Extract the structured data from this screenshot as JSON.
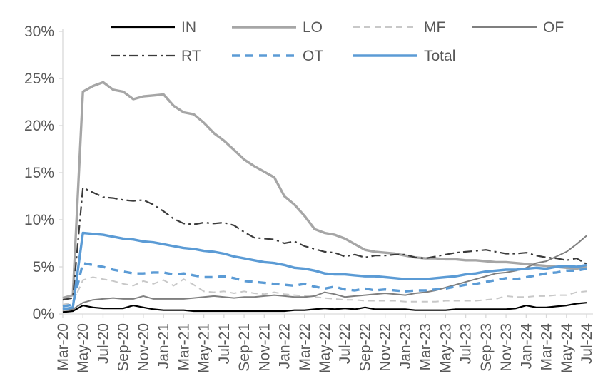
{
  "chart_data": {
    "type": "line",
    "grid": false,
    "legend_position": "top-two-rows",
    "ylim": [
      0,
      30
    ],
    "y_tick_labels": [
      "0%",
      "5%",
      "10%",
      "15%",
      "20%",
      "25%",
      "30%"
    ],
    "x_monthly": [
      "Mar-20",
      "Apr-20",
      "May-20",
      "Jun-20",
      "Jul-20",
      "Aug-20",
      "Sep-20",
      "Oct-20",
      "Nov-20",
      "Dec-20",
      "Jan-21",
      "Feb-21",
      "Mar-21",
      "Apr-21",
      "May-21",
      "Jun-21",
      "Jul-21",
      "Aug-21",
      "Sep-21",
      "Oct-21",
      "Nov-21",
      "Dec-21",
      "Jan-22",
      "Feb-22",
      "Mar-22",
      "Apr-22",
      "May-22",
      "Jun-22",
      "Jul-22",
      "Aug-22",
      "Sep-22",
      "Oct-22",
      "Nov-22",
      "Dec-22",
      "Jan-23",
      "Feb-23",
      "Mar-23",
      "Apr-23",
      "May-23",
      "Jun-23",
      "Jul-23",
      "Aug-23",
      "Sep-23",
      "Oct-23",
      "Nov-23",
      "Dec-23",
      "Jan-24",
      "Feb-24",
      "Mar-24",
      "Apr-24",
      "May-24",
      "Jun-24",
      "Jul-24"
    ],
    "x_tick_labels": [
      "Mar-20",
      "May-20",
      "Jul-20",
      "Sep-20",
      "Nov-20",
      "Jan-21",
      "Mar-21",
      "May-21",
      "Jul-21",
      "Sep-21",
      "Nov-21",
      "Jan-22",
      "Mar-22",
      "May-22",
      "Jul-22",
      "Sep-22",
      "Nov-22",
      "Jan-23",
      "Mar-23",
      "May-23",
      "Jul-23",
      "Sep-23",
      "Nov-23",
      "Jan-24",
      "Mar-24",
      "May-24",
      "Jul-24"
    ],
    "axis_color": "#d9d9d9",
    "text_color": "#595959",
    "series": [
      {
        "name": "IN",
        "color": "#000000",
        "width": 2.2,
        "dash_pattern": "",
        "values": [
          0.2,
          0.3,
          0.9,
          0.7,
          0.6,
          0.6,
          0.6,
          0.9,
          0.7,
          0.5,
          0.4,
          0.4,
          0.4,
          0.3,
          0.3,
          0.3,
          0.3,
          0.3,
          0.3,
          0.3,
          0.3,
          0.3,
          0.3,
          0.4,
          0.4,
          0.5,
          0.6,
          0.5,
          0.6,
          0.5,
          0.7,
          0.5,
          0.5,
          0.5,
          0.5,
          0.4,
          0.4,
          0.4,
          0.4,
          0.5,
          0.5,
          0.5,
          0.5,
          0.5,
          0.5,
          0.6,
          0.9,
          0.7,
          0.7,
          0.8,
          0.9,
          1.1,
          1.2
        ]
      },
      {
        "name": "LO",
        "color": "#a6a6a6",
        "width": 3.4,
        "dash_pattern": "",
        "values": [
          1.7,
          2.0,
          23.6,
          24.2,
          24.6,
          23.8,
          23.6,
          22.8,
          23.1,
          23.2,
          23.3,
          22.1,
          21.4,
          21.2,
          20.3,
          19.2,
          18.4,
          17.4,
          16.4,
          15.7,
          15.1,
          14.5,
          12.5,
          11.6,
          10.4,
          9.0,
          8.6,
          8.4,
          8.0,
          7.4,
          6.8,
          6.6,
          6.5,
          6.4,
          6.2,
          6.0,
          5.9,
          5.9,
          5.8,
          5.8,
          5.7,
          5.7,
          5.6,
          5.5,
          5.5,
          5.4,
          5.3,
          5.2,
          5.1,
          5.0,
          4.9,
          4.8,
          5.0
        ]
      },
      {
        "name": "MF",
        "color": "#c8c8c8",
        "width": 2.0,
        "dash_pattern": "9 6",
        "values": [
          1.0,
          1.2,
          3.6,
          3.9,
          3.7,
          3.5,
          3.2,
          3.0,
          3.5,
          3.2,
          3.6,
          3.0,
          3.7,
          3.1,
          2.4,
          2.3,
          2.4,
          2.2,
          2.4,
          2.2,
          2.1,
          2.3,
          2.1,
          2.0,
          1.9,
          1.8,
          1.7,
          1.6,
          1.5,
          1.5,
          1.4,
          1.4,
          1.4,
          1.4,
          1.3,
          1.3,
          1.3,
          1.3,
          1.4,
          1.4,
          1.4,
          1.4,
          1.5,
          1.6,
          1.9,
          1.8,
          1.8,
          1.9,
          1.9,
          2.0,
          2.0,
          2.3,
          2.4
        ]
      },
      {
        "name": "OF",
        "color": "#7f7f7f",
        "width": 2.0,
        "dash_pattern": "",
        "values": [
          0.4,
          0.5,
          1.2,
          1.5,
          1.6,
          1.7,
          1.6,
          1.6,
          1.9,
          1.6,
          1.6,
          1.6,
          1.6,
          1.7,
          1.8,
          1.9,
          1.8,
          1.7,
          1.8,
          1.8,
          1.9,
          2.0,
          1.9,
          1.8,
          1.8,
          1.9,
          2.3,
          2.1,
          1.8,
          1.9,
          2.0,
          2.1,
          2.2,
          2.1,
          2.0,
          2.2,
          2.3,
          2.5,
          2.8,
          3.1,
          3.4,
          3.7,
          4.0,
          4.3,
          4.4,
          4.6,
          4.9,
          5.4,
          5.6,
          6.1,
          6.6,
          7.4,
          8.3
        ]
      },
      {
        "name": "RT",
        "color": "#3b3b3b",
        "width": 2.2,
        "dash_pattern": "13 5 3 5",
        "values": [
          1.5,
          1.7,
          13.4,
          12.9,
          12.4,
          12.3,
          12.1,
          12.0,
          12.1,
          11.6,
          10.9,
          10.1,
          9.6,
          9.5,
          9.7,
          9.6,
          9.7,
          9.4,
          8.7,
          8.1,
          8.0,
          7.9,
          7.5,
          7.7,
          7.2,
          6.9,
          6.6,
          6.5,
          6.1,
          6.3,
          6.0,
          6.2,
          6.2,
          6.3,
          6.3,
          6.0,
          5.9,
          6.1,
          6.3,
          6.5,
          6.6,
          6.7,
          6.8,
          6.6,
          6.4,
          6.4,
          6.5,
          6.2,
          6.0,
          5.9,
          5.7,
          5.9,
          5.3
        ]
      },
      {
        "name": "OT",
        "color": "#5b9bd5",
        "width": 3.4,
        "dash_pattern": "11 8",
        "values": [
          0.8,
          1.0,
          5.4,
          5.2,
          5.0,
          4.7,
          4.5,
          4.3,
          4.3,
          4.4,
          4.4,
          4.2,
          4.3,
          4.1,
          3.9,
          3.9,
          4.0,
          3.8,
          3.5,
          3.4,
          3.3,
          3.2,
          3.1,
          3.0,
          3.2,
          2.9,
          2.7,
          2.9,
          2.6,
          2.5,
          2.7,
          2.5,
          2.6,
          2.5,
          2.4,
          2.5,
          2.5,
          2.6,
          2.7,
          2.9,
          3.1,
          3.2,
          3.4,
          3.6,
          3.8,
          3.7,
          3.9,
          4.1,
          4.3,
          4.4,
          4.6,
          4.6,
          4.8
        ]
      },
      {
        "name": "Total",
        "color": "#5b9bd5",
        "width": 3.4,
        "dash_pattern": "",
        "values": [
          0.5,
          0.7,
          8.6,
          8.5,
          8.4,
          8.2,
          8.0,
          7.9,
          7.7,
          7.6,
          7.4,
          7.2,
          7.0,
          6.9,
          6.7,
          6.6,
          6.4,
          6.1,
          5.9,
          5.7,
          5.5,
          5.4,
          5.2,
          4.9,
          4.8,
          4.6,
          4.3,
          4.2,
          4.2,
          4.1,
          4.0,
          4.0,
          3.9,
          3.8,
          3.7,
          3.7,
          3.7,
          3.8,
          3.9,
          4.0,
          4.2,
          4.3,
          4.5,
          4.6,
          4.7,
          4.7,
          4.8,
          4.9,
          4.8,
          5.0,
          5.1,
          5.0,
          5.2
        ]
      }
    ]
  }
}
